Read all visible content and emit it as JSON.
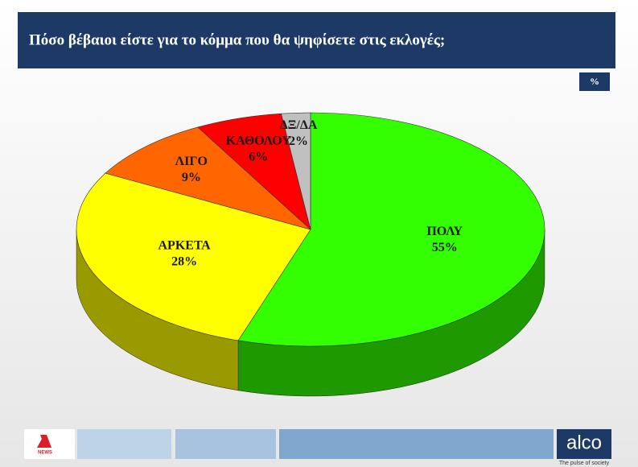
{
  "chart_data": {
    "type": "pie3d",
    "title": "Πόσο βέβαιοι είστε για το κόμμα που θα ψηφίσετε στις εκλογές;",
    "unit_label": "%",
    "categories": [
      "ΠΟΛΥ",
      "ΑΡΚΕΤΑ",
      "ΛΙΓΟ",
      "ΚΑΘΟΛΟΥ",
      "ΔΞ/ΔΑ"
    ],
    "values": [
      55,
      28,
      9,
      6,
      2
    ],
    "value_labels": [
      "55%",
      "28%",
      "9%",
      "6%",
      "2%"
    ],
    "colors": [
      "#33ff00",
      "#ffff00",
      "#ff6600",
      "#ff0000",
      "#c0c0c0"
    ]
  },
  "footer": {
    "news": "NEWS",
    "brand": "alco",
    "tagline": "The pulse of society"
  }
}
